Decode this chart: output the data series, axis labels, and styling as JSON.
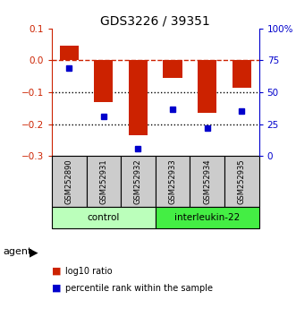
{
  "title": "GDS3226 / 39351",
  "samples": [
    "GSM252890",
    "GSM252931",
    "GSM252932",
    "GSM252933",
    "GSM252934",
    "GSM252935"
  ],
  "log10_ratios": [
    0.045,
    -0.13,
    -0.235,
    -0.055,
    -0.165,
    -0.085
  ],
  "percentile_ranks": [
    69,
    31,
    6,
    37,
    22,
    35
  ],
  "bar_color": "#CC2200",
  "dot_color": "#0000CC",
  "ylim_left": [
    -0.3,
    0.1
  ],
  "ylim_right": [
    0,
    100
  ],
  "yticks_left": [
    0.1,
    0.0,
    -0.1,
    -0.2,
    -0.3
  ],
  "yticks_right": [
    100,
    75,
    50,
    25,
    0
  ],
  "groups": [
    {
      "label": "control",
      "indices": [
        0,
        1,
        2
      ],
      "color": "#AAFFAA"
    },
    {
      "label": "interleukin-22",
      "indices": [
        3,
        4,
        5
      ],
      "color": "#44DD44"
    }
  ],
  "agent_label": "agent",
  "legend_log10": "log10 ratio",
  "legend_pct": "percentile rank within the sample",
  "hline_color": "#CC2200",
  "dotted_line_color": "#000000",
  "background_color": "#ffffff",
  "sample_box_color": "#CCCCCC",
  "control_color": "#BBFFBB",
  "interleukin_color": "#44EE44"
}
